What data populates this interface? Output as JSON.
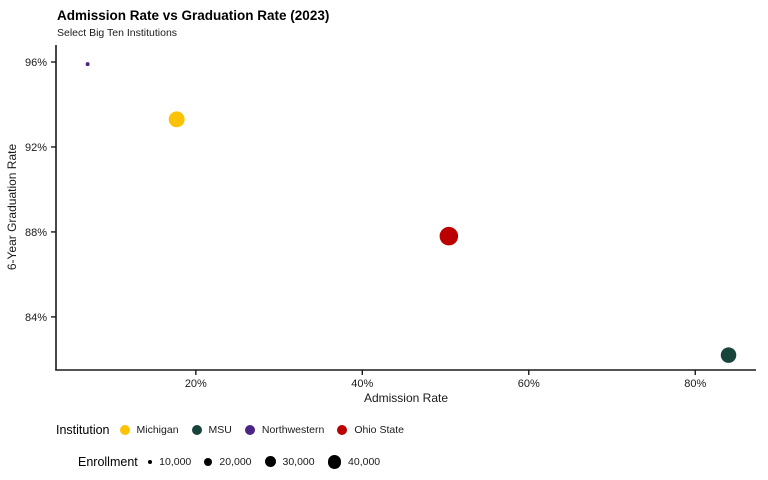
{
  "chart": {
    "title": "Admission Rate vs Graduation Rate (2023)",
    "subtitle": "Select Big Ten Institutions",
    "xlabel": "Admission Rate",
    "ylabel": "6-Year Graduation Rate"
  },
  "chart_data": {
    "type": "scatter",
    "title": "Admission Rate vs Graduation Rate (2023)",
    "subtitle": "Select Big Ten Institutions",
    "xlabel": "Admission Rate",
    "ylabel": "6-Year Graduation Rate",
    "x_ticks": [
      20,
      40,
      60,
      80
    ],
    "x_tick_labels": [
      "20%",
      "40%",
      "60%",
      "80%"
    ],
    "y_ticks": [
      96,
      92,
      88,
      84
    ],
    "y_tick_labels": [
      "96%",
      "92%",
      "88%",
      "84%"
    ],
    "xlim": [
      3.2,
      87.3
    ],
    "ylim": [
      81.5,
      96.8
    ],
    "grid": false,
    "legend_position": "bottom",
    "points": [
      {
        "institution": "Michigan",
        "admission_rate_pct": 17.7,
        "graduation_rate_pct": 93.3,
        "enrollment": 52000,
        "color": "#FCC306"
      },
      {
        "institution": "MSU",
        "admission_rate_pct": 84.0,
        "graduation_rate_pct": 82.2,
        "enrollment": 50000,
        "color": "#18453B"
      },
      {
        "institution": "Northwestern",
        "admission_rate_pct": 7.0,
        "graduation_rate_pct": 95.9,
        "enrollment": 9000,
        "color": "#4B2583"
      },
      {
        "institution": "Ohio State",
        "admission_rate_pct": 50.4,
        "graduation_rate_pct": 87.8,
        "enrollment": 66000,
        "color": "#BB0000"
      }
    ]
  },
  "legend": {
    "institution": {
      "title": "Institution",
      "items": [
        {
          "label": "Michigan",
          "color": "#FCC306"
        },
        {
          "label": "MSU",
          "color": "#18453B"
        },
        {
          "label": "Northwestern",
          "color": "#4B2583"
        },
        {
          "label": "Ohio State",
          "color": "#BB0000"
        }
      ]
    },
    "enrollment": {
      "title": "Enrollment",
      "dot_color": "#000000",
      "items": [
        {
          "label": "10,000",
          "value": 10000
        },
        {
          "label": "20,000",
          "value": 20000
        },
        {
          "label": "30,000",
          "value": 30000
        },
        {
          "label": "40,000",
          "value": 40000
        }
      ]
    }
  },
  "colors": {
    "axis": "#1a1a1a",
    "text": "#1a1a1a",
    "background": "#ffffff"
  }
}
